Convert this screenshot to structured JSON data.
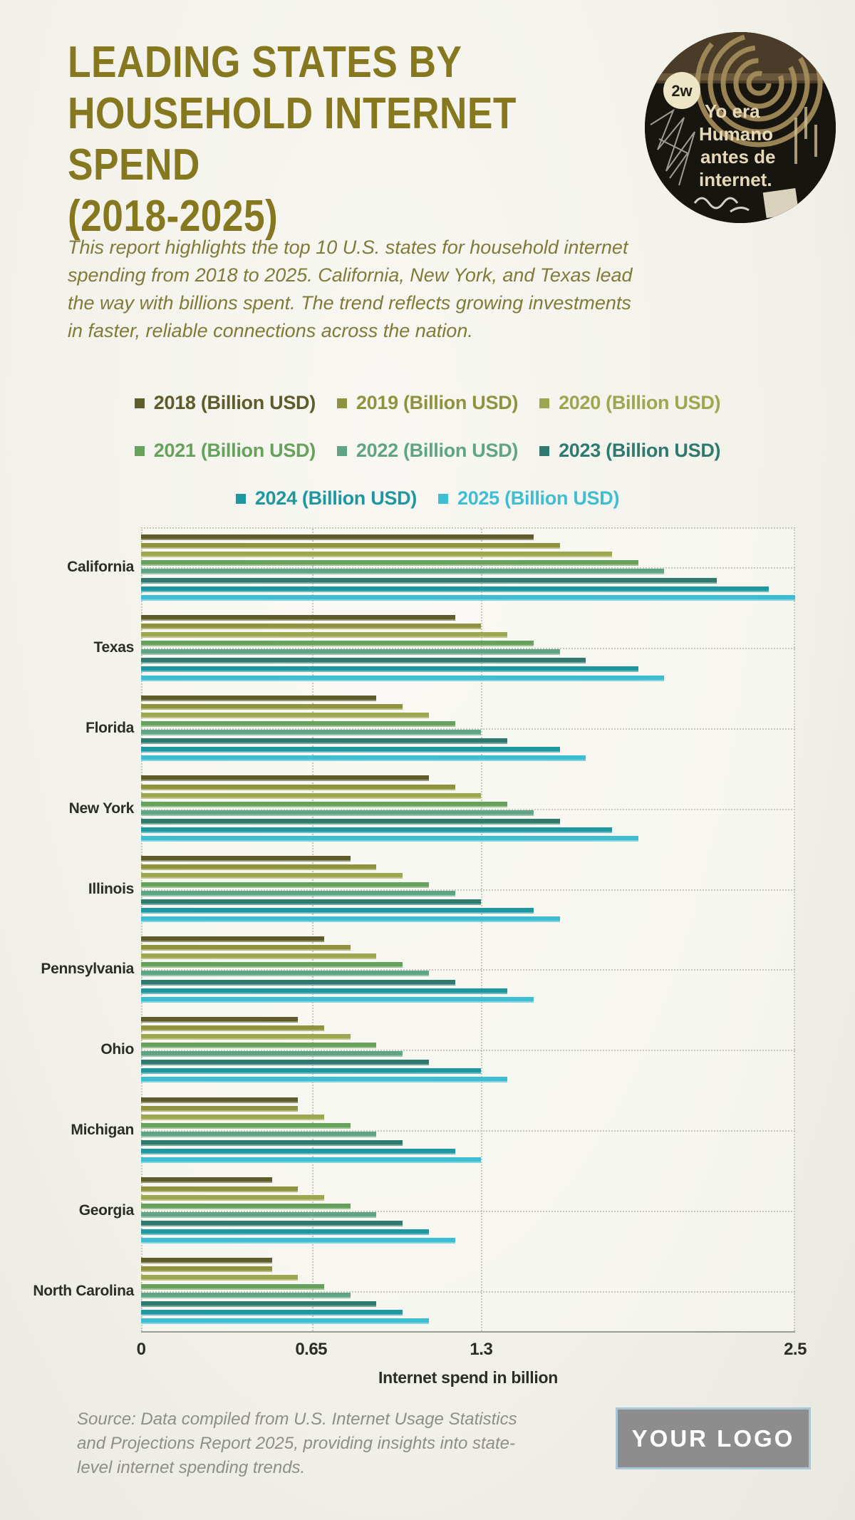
{
  "page": {
    "title_lines": [
      "LEADING STATES BY",
      "HOUSEHOLD INTERNET SPEND",
      "(2018-2025)"
    ],
    "intro": "This report highlights the top 10 U.S. states for household internet spending from 2018 to 2025. California, New York, and Texas lead the way with billions spent. The trend reflects growing investments in faster, reliable connections across the nation.",
    "hero_image_lines": [
      "Yo era",
      "Humano",
      "antes de",
      "internet."
    ],
    "source_note": "Source: Data compiled from U.S. Internet Usage Statistics and Projections Report 2025, providing insights into state-level internet spending trends.",
    "logo_text": "YOUR LOGO",
    "colors": {
      "title": "#86781f",
      "intro_text": "#7f7b38",
      "source_text": "#8e8e8a",
      "logo_border": "#a9c6d8",
      "logo_background": "#8d8d8d"
    }
  },
  "chart_data": {
    "type": "bar",
    "orientation": "horizontal",
    "title": "Leading States by Household Internet Spend (2018-2025)",
    "xlabel": "Internet spend in billion",
    "xlim": [
      0,
      2.5
    ],
    "x_ticks": [
      0,
      0.65,
      1.3,
      2.5
    ],
    "x_tick_labels": [
      "0",
      "0.65",
      "1.3",
      "2.5"
    ],
    "grid": "dashed",
    "legend_position": "top",
    "categories": [
      "California",
      "Texas",
      "Florida",
      "New York",
      "Illinois",
      "Pennsylvania",
      "Ohio",
      "Michigan",
      "Georgia",
      "North Carolina"
    ],
    "series": [
      {
        "name": "2018 (Billion USD)",
        "color": "#5e5c2b",
        "values": [
          1.5,
          1.2,
          0.9,
          1.1,
          0.8,
          0.7,
          0.6,
          0.6,
          0.5,
          0.5
        ]
      },
      {
        "name": "2019 (Billion USD)",
        "color": "#90933e",
        "values": [
          1.6,
          1.3,
          1.0,
          1.2,
          0.9,
          0.8,
          0.7,
          0.6,
          0.6,
          0.5
        ]
      },
      {
        "name": "2020 (Billion USD)",
        "color": "#9ca74f",
        "values": [
          1.8,
          1.4,
          1.1,
          1.3,
          1.0,
          0.9,
          0.8,
          0.7,
          0.7,
          0.6
        ]
      },
      {
        "name": "2021 (Billion USD)",
        "color": "#67a25c",
        "values": [
          1.9,
          1.5,
          1.2,
          1.4,
          1.1,
          1.0,
          0.9,
          0.8,
          0.8,
          0.7
        ]
      },
      {
        "name": "2022 (Billion USD)",
        "color": "#60a486",
        "values": [
          2.0,
          1.6,
          1.3,
          1.5,
          1.2,
          1.1,
          1.0,
          0.9,
          0.9,
          0.8
        ]
      },
      {
        "name": "2023 (Billion USD)",
        "color": "#2e7a6e",
        "values": [
          2.2,
          1.7,
          1.4,
          1.6,
          1.3,
          1.2,
          1.1,
          1.0,
          1.0,
          0.9
        ]
      },
      {
        "name": "2024 (Billion USD)",
        "color": "#1f97a1",
        "values": [
          2.4,
          1.9,
          1.6,
          1.8,
          1.5,
          1.4,
          1.3,
          1.2,
          1.1,
          1.0
        ]
      },
      {
        "name": "2025 (Billion USD)",
        "color": "#3fbdd2",
        "values": [
          2.5,
          2.0,
          1.7,
          1.9,
          1.6,
          1.5,
          1.4,
          1.3,
          1.2,
          1.1
        ]
      }
    ]
  }
}
